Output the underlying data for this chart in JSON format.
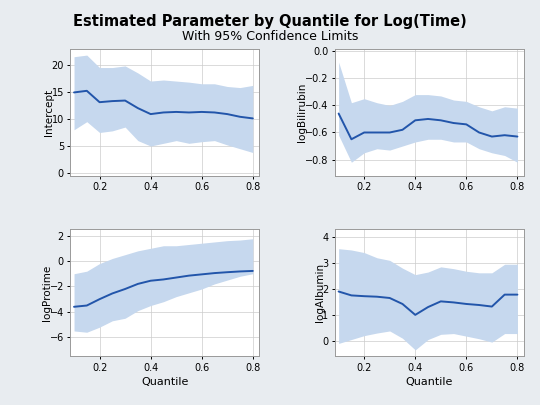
{
  "title": "Estimated Parameter by Quantile for Log(Time)",
  "subtitle": "With 95% Confidence Limits",
  "quantiles": [
    0.1,
    0.15,
    0.2,
    0.25,
    0.3,
    0.35,
    0.4,
    0.45,
    0.5,
    0.55,
    0.6,
    0.65,
    0.7,
    0.75,
    0.8
  ],
  "intercept": {
    "label": "Intercept",
    "y": [
      14.9,
      15.2,
      13.1,
      13.3,
      13.4,
      12.0,
      10.9,
      11.2,
      11.3,
      11.2,
      11.3,
      11.2,
      10.9,
      10.4,
      10.1
    ],
    "lower": [
      8.0,
      9.5,
      7.5,
      7.8,
      8.5,
      6.0,
      5.0,
      5.5,
      6.0,
      5.5,
      5.8,
      6.0,
      5.2,
      4.5,
      3.8
    ],
    "upper": [
      21.5,
      21.8,
      19.5,
      19.5,
      19.8,
      18.5,
      17.0,
      17.2,
      17.0,
      16.8,
      16.5,
      16.5,
      16.0,
      15.8,
      16.2
    ],
    "ylim": [
      -0.5,
      23
    ],
    "yticks": [
      0,
      5,
      10,
      15,
      20
    ]
  },
  "logBilirubin": {
    "label": "logBilirubin",
    "y": [
      -0.46,
      -0.65,
      -0.6,
      -0.6,
      -0.6,
      -0.58,
      -0.51,
      -0.5,
      -0.51,
      -0.53,
      -0.54,
      -0.6,
      -0.63,
      -0.62,
      -0.63
    ],
    "lower": [
      -0.62,
      -0.82,
      -0.75,
      -0.72,
      -0.73,
      -0.7,
      -0.67,
      -0.65,
      -0.65,
      -0.67,
      -0.67,
      -0.72,
      -0.75,
      -0.77,
      -0.82
    ],
    "upper": [
      -0.08,
      -0.38,
      -0.35,
      -0.38,
      -0.4,
      -0.37,
      -0.32,
      -0.32,
      -0.33,
      -0.36,
      -0.37,
      -0.41,
      -0.44,
      -0.41,
      -0.42
    ],
    "ylim": [
      -0.92,
      0.02
    ],
    "yticks": [
      0.0,
      -0.2,
      -0.4,
      -0.6,
      -0.8
    ]
  },
  "logProtime": {
    "label": "logProtime",
    "y": [
      -3.6,
      -3.5,
      -3.0,
      -2.55,
      -2.2,
      -1.8,
      -1.55,
      -1.45,
      -1.3,
      -1.15,
      -1.05,
      -0.95,
      -0.88,
      -0.82,
      -0.78
    ],
    "lower": [
      -5.5,
      -5.6,
      -5.2,
      -4.7,
      -4.5,
      -3.9,
      -3.5,
      -3.2,
      -2.8,
      -2.5,
      -2.2,
      -1.8,
      -1.5,
      -1.2,
      -1.0
    ],
    "upper": [
      -1.0,
      -0.8,
      -0.2,
      0.2,
      0.5,
      0.8,
      1.0,
      1.2,
      1.2,
      1.3,
      1.4,
      1.5,
      1.6,
      1.65,
      1.75
    ],
    "ylim": [
      -7.5,
      2.5
    ],
    "yticks": [
      -6,
      -4,
      -2,
      0,
      2
    ]
  },
  "logAlbumin": {
    "label": "logAlbumin",
    "y": [
      1.9,
      1.75,
      1.72,
      1.7,
      1.65,
      1.42,
      1.0,
      1.3,
      1.52,
      1.48,
      1.42,
      1.38,
      1.32,
      1.78,
      1.78
    ],
    "lower": [
      -0.1,
      0.05,
      0.2,
      0.3,
      0.38,
      0.1,
      -0.35,
      0.05,
      0.25,
      0.28,
      0.18,
      0.08,
      -0.05,
      0.28,
      0.28
    ],
    "upper": [
      3.55,
      3.5,
      3.4,
      3.2,
      3.1,
      2.8,
      2.55,
      2.65,
      2.85,
      2.78,
      2.68,
      2.62,
      2.62,
      2.95,
      2.95
    ],
    "ylim": [
      -0.6,
      4.3
    ],
    "yticks": [
      0,
      1,
      2,
      3,
      4
    ]
  },
  "line_color": "#2255aa",
  "band_color": "#c6d8ee",
  "bg_color": "#e8ecf0",
  "panel_bg": "#ffffff",
  "grid_color": "#cccccc",
  "xlabel": "Quantile"
}
